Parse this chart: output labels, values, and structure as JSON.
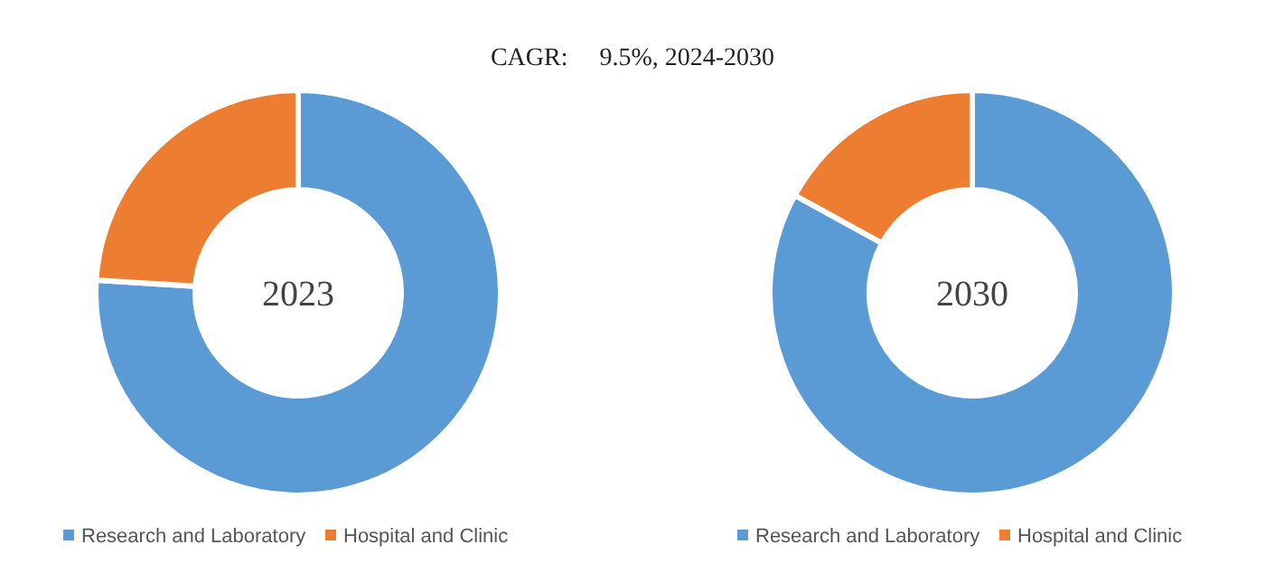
{
  "chart_data": [
    {
      "type": "donut",
      "title": "CAGR:     9.5%, 2024-2030",
      "categories": [
        "Research and Laboratory",
        "Hospital and Clinic"
      ],
      "values": [
        76,
        24
      ],
      "colors": [
        "#5b9bd5",
        "#ed7d31"
      ],
      "annotations": [
        "2023"
      ],
      "legend": "bottom"
    },
    {
      "type": "donut",
      "categories": [
        "Research and Laboratory",
        "Hospital and Clinic"
      ],
      "values": [
        83,
        17
      ],
      "colors": [
        "#5b9bd5",
        "#ed7d31"
      ],
      "annotations": [
        "2030"
      ],
      "legend": "bottom"
    }
  ]
}
